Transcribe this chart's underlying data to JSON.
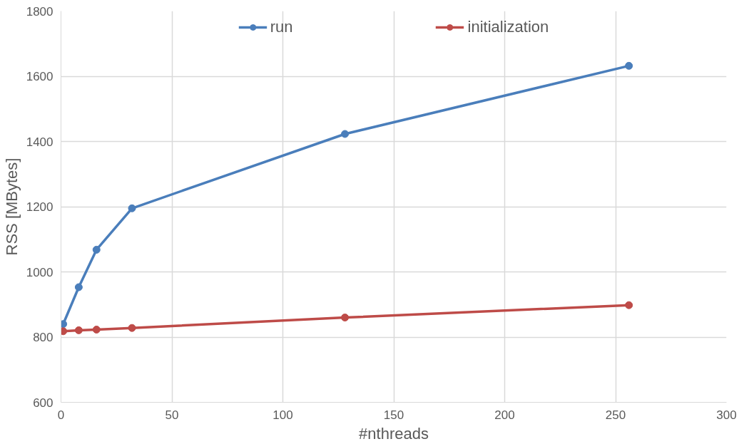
{
  "chart_data": {
    "type": "line",
    "xlabel": "#nthreads",
    "ylabel": "RSS [MBytes]",
    "x": [
      1,
      8,
      16,
      32,
      128,
      256
    ],
    "series": [
      {
        "name": "run",
        "color": "#4a7ebb",
        "values": [
          840,
          953,
          1068,
          1195,
          1423,
          1632
        ]
      },
      {
        "name": "initialization",
        "color": "#be4b48",
        "values": [
          818,
          821,
          823,
          828,
          860,
          898
        ]
      }
    ],
    "xlim": [
      0,
      300
    ],
    "xticks": [
      0,
      50,
      100,
      150,
      200,
      250,
      300
    ],
    "ylim": [
      600,
      1800
    ],
    "yticks": [
      600,
      800,
      1000,
      1200,
      1400,
      1600,
      1800
    ],
    "grid": true,
    "legend": "top",
    "marker": "circle",
    "line_style": "solid"
  }
}
